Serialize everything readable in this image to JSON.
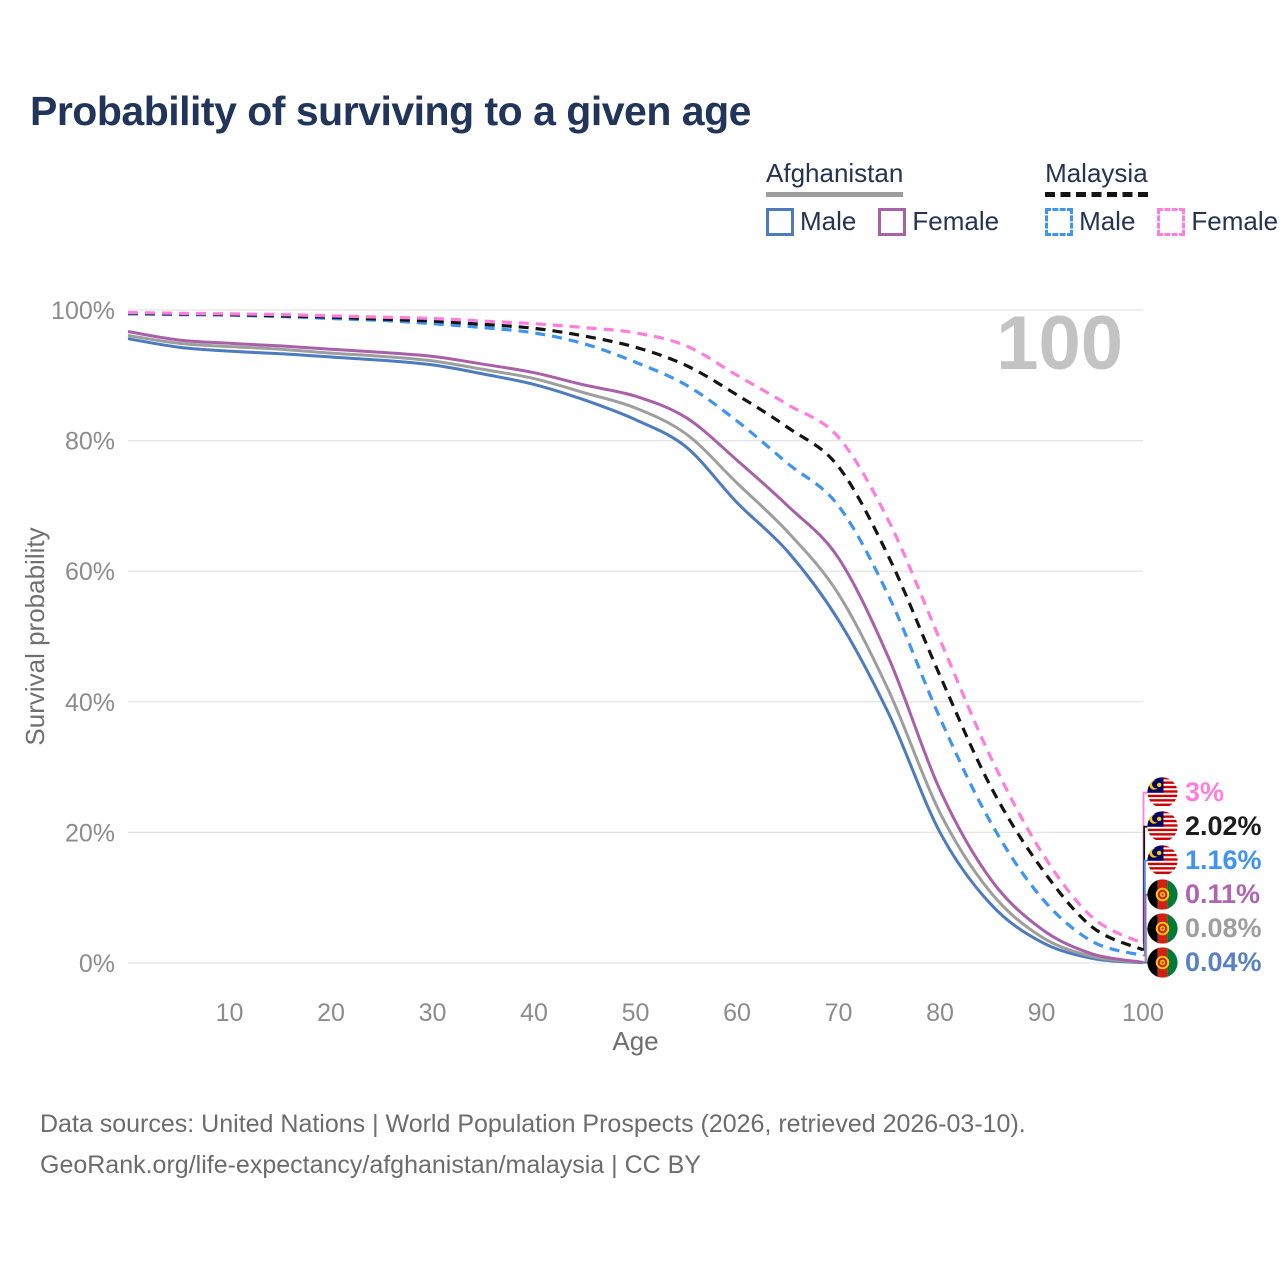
{
  "title": "Probability of surviving to a given age",
  "legend": {
    "groups": [
      {
        "country": "Afghanistan",
        "line_style": "solid",
        "underline_color": "#9d9d9d",
        "items": [
          {
            "label": "Male",
            "color": "#4d7bc0",
            "dashed": false
          },
          {
            "label": "Female",
            "color": "#a860a8",
            "dashed": false
          }
        ]
      },
      {
        "country": "Malaysia",
        "line_style": "dashed",
        "underline_color": "#141414",
        "items": [
          {
            "label": "Male",
            "color": "#3f94f1",
            "dashed": true
          },
          {
            "label": "Female",
            "color": "#ff7ddd",
            "dashed": true
          }
        ]
      }
    ]
  },
  "chart_data": {
    "type": "line",
    "title": "Probability of surviving to a given age",
    "xlabel": "Age",
    "ylabel": "Survival probability",
    "age_indicator": "100",
    "x_ticks": [
      10,
      20,
      30,
      40,
      50,
      60,
      70,
      80,
      90,
      100
    ],
    "y_ticks": [
      0,
      20,
      40,
      60,
      80,
      100
    ],
    "y_tick_suffix": "%",
    "xlim": [
      0,
      100
    ],
    "ylim": [
      0,
      100
    ],
    "grid": true,
    "x": [
      0,
      5,
      10,
      15,
      20,
      25,
      30,
      35,
      40,
      45,
      50,
      55,
      60,
      65,
      70,
      75,
      80,
      85,
      90,
      95,
      100
    ],
    "series": [
      {
        "name": "Afghanistan Male",
        "country": "Afghanistan",
        "sex": "Male",
        "style": "solid",
        "color": "#4d7bc0",
        "flag": "af",
        "end_label": "0.04%",
        "end_label_color": "#5781c2",
        "values": [
          95.6,
          94.3,
          93.7,
          93.3,
          92.8,
          92.3,
          91.6,
          90.2,
          88.6,
          86.2,
          83.2,
          79.0,
          70.5,
          63.0,
          52.5,
          38.0,
          20.0,
          9.0,
          3.2,
          0.7,
          0.04
        ]
      },
      {
        "name": "Afghanistan Both sexes",
        "country": "Afghanistan",
        "sex": "Both",
        "style": "solid",
        "color": "#9e9e9e",
        "flag": "af",
        "end_label": "0.08%",
        "end_label_color": "#9e9e9e",
        "values": [
          96.1,
          94.9,
          94.4,
          94.0,
          93.4,
          92.9,
          92.2,
          90.9,
          89.5,
          87.3,
          85.0,
          81.0,
          73.5,
          66.0,
          56.5,
          41.5,
          23.0,
          10.8,
          4.0,
          1.0,
          0.08
        ]
      },
      {
        "name": "Afghanistan Female",
        "country": "Afghanistan",
        "sex": "Female",
        "style": "solid",
        "color": "#a860a8",
        "flag": "af",
        "end_label": "0.11%",
        "end_label_color": "#b165b1",
        "values": [
          96.7,
          95.4,
          94.9,
          94.5,
          94.0,
          93.5,
          92.9,
          91.7,
          90.4,
          88.5,
          86.8,
          83.5,
          77.0,
          70.0,
          62.0,
          46.5,
          26.5,
          12.8,
          5.2,
          1.4,
          0.11
        ]
      },
      {
        "name": "Malaysia Male",
        "country": "Malaysia",
        "sex": "Male",
        "style": "dashed",
        "color": "#3f94f1",
        "flag": "my",
        "end_label": "1.16%",
        "end_label_color": "#3f94f1",
        "values": [
          99.4,
          99.3,
          99.2,
          99.0,
          98.7,
          98.4,
          97.9,
          97.3,
          96.5,
          94.8,
          92.0,
          88.5,
          83.0,
          76.5,
          70.0,
          56.0,
          37.5,
          21.5,
          10.0,
          3.3,
          1.16
        ]
      },
      {
        "name": "Malaysia Both sexes",
        "country": "Malaysia",
        "sex": "Both",
        "style": "dashed",
        "color": "#141414",
        "flag": "my",
        "end_label": "2.02%",
        "end_label_color": "#1c1c1c",
        "values": [
          99.5,
          99.4,
          99.3,
          99.1,
          98.9,
          98.6,
          98.3,
          97.8,
          97.2,
          96.0,
          94.3,
          91.5,
          87.0,
          82.0,
          76.0,
          62.0,
          44.0,
          27.0,
          14.5,
          5.5,
          2.02
        ]
      },
      {
        "name": "Malaysia Female",
        "country": "Malaysia",
        "sex": "Female",
        "style": "dashed",
        "color": "#ff7ddd",
        "flag": "my",
        "end_label": "3%",
        "end_label_color": "#ff7ddd",
        "values": [
          99.6,
          99.5,
          99.4,
          99.3,
          99.1,
          98.9,
          98.7,
          98.3,
          97.9,
          97.3,
          96.5,
          94.5,
          90.0,
          85.5,
          80.5,
          67.5,
          49.5,
          31.5,
          17.0,
          7.0,
          3.0
        ]
      }
    ]
  },
  "footer": {
    "line1": "Data sources: United Nations | World Population Prospects (2026, retrieved 2026-03-10).",
    "line2": "GeoRank.org/life-expectancy/afghanistan/malaysia | CC BY"
  }
}
